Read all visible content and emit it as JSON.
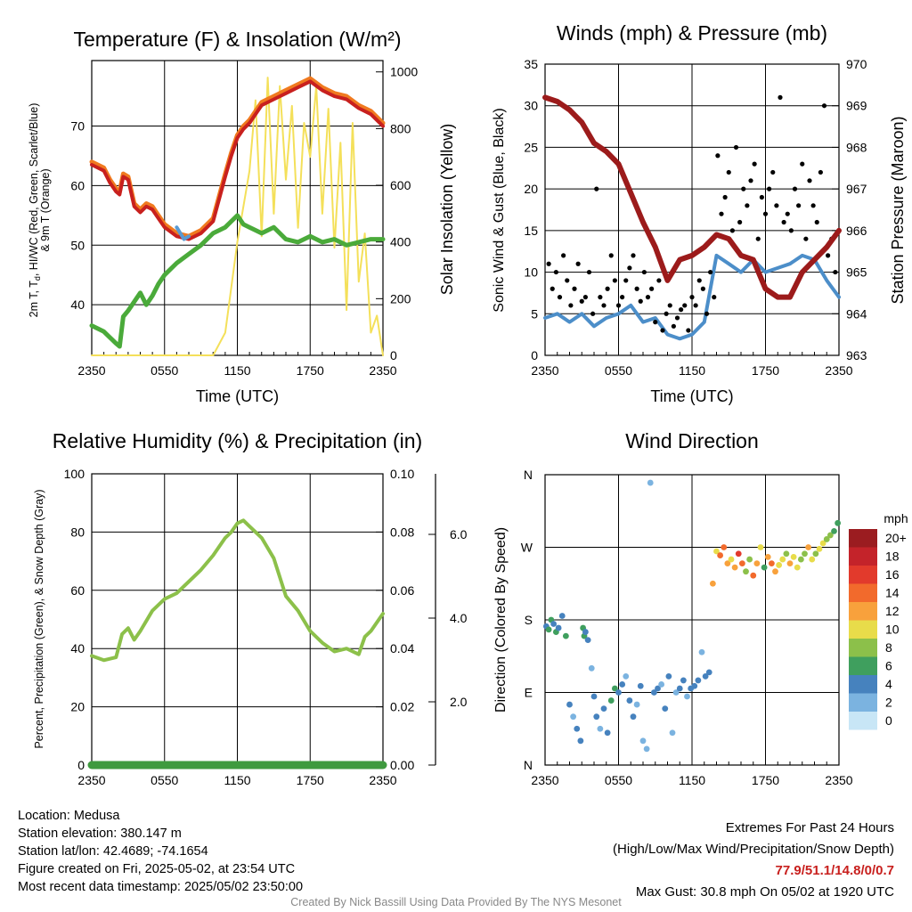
{
  "chart_data": [
    {
      "type": "line",
      "title": "Temperature (F) & Insolation (W/m²)",
      "xlabel": "Time (UTC)",
      "ylabel": "2m T, Td, HI/WC (Red, Green, Scarlet/Blue) & 9m T (Orange)",
      "ylabel_lines": [
        "2m T, T",
        "d",
        ", HI/WC (Red, Green, Scarlet/Blue)",
        "& 9m T (Orange)"
      ],
      "y2label": "Solar Insolation (Yellow)",
      "xticks": [
        "2350",
        "0550",
        "1150",
        "1750",
        "2350"
      ],
      "ylim": [
        31.5,
        81
      ],
      "yticks": [
        40,
        50,
        60,
        70
      ],
      "y2lim": [
        0,
        1040
      ],
      "y2ticks": [
        0,
        200,
        400,
        600,
        800,
        1000
      ],
      "x": [
        0,
        1,
        1.5,
        2,
        2.3,
        2.6,
        3,
        3.5,
        4,
        4.5,
        5,
        5.5,
        6,
        7,
        8,
        9,
        10,
        11,
        11.5,
        12,
        12.5,
        13,
        14,
        15,
        16,
        17,
        18,
        19,
        20,
        21,
        22,
        23,
        24
      ],
      "series": [
        {
          "name": "2m T",
          "color": "#c8201e",
          "values": [
            63.5,
            62.5,
            60.5,
            59,
            58.5,
            61.5,
            61,
            56.5,
            55.5,
            56.5,
            56,
            54.5,
            53,
            51.5,
            51,
            52,
            54,
            61.5,
            65,
            68,
            69.5,
            70.5,
            73.5,
            74.5,
            75.5,
            76.5,
            77.5,
            76,
            75,
            74.5,
            73,
            72,
            70
          ]
        },
        {
          "name": "9m T",
          "color": "#f07a1f",
          "values": [
            64,
            63,
            61,
            59.5,
            59,
            62,
            61.5,
            57,
            56,
            57,
            56.5,
            55,
            53.5,
            52,
            51.5,
            52.5,
            54.5,
            62,
            65.5,
            68.5,
            70,
            71,
            74,
            75,
            76,
            77,
            78,
            76.5,
            75.5,
            75,
            73.5,
            72.5,
            70.5
          ]
        },
        {
          "name": "Td",
          "color": "#4aaa3a",
          "values": [
            36.5,
            35.5,
            34.5,
            33.5,
            33,
            38,
            39,
            40.5,
            42,
            40,
            41.5,
            43.5,
            45,
            47,
            48.5,
            50,
            52,
            53,
            54,
            55,
            53.5,
            53,
            52,
            53,
            51,
            50.5,
            51.5,
            50.5,
            51,
            50,
            50.5,
            51,
            51
          ]
        }
      ],
      "wind_chill": {
        "name": "HI/WC",
        "color": "#5a9ad2",
        "x": [
          7,
          7.3,
          7.6,
          8
        ],
        "values": [
          53,
          52,
          51,
          51.5
        ]
      },
      "insolation": {
        "name": "Solar Insolation",
        "color": "#f4e05a",
        "x": [
          0,
          10,
          11,
          12,
          13,
          13.5,
          14,
          14.5,
          15,
          15.5,
          16,
          16.5,
          17,
          17.5,
          18,
          18.5,
          19,
          19.5,
          20,
          20.5,
          21,
          21.5,
          22,
          22.5,
          23,
          23.5,
          24
        ],
        "values": [
          0,
          0,
          80,
          400,
          650,
          900,
          420,
          980,
          500,
          950,
          620,
          880,
          450,
          820,
          700,
          950,
          500,
          870,
          380,
          750,
          160,
          820,
          260,
          430,
          80,
          140,
          0
        ]
      }
    },
    {
      "type": "line",
      "title": "Winds (mph) & Pressure (mb)",
      "xlabel": "Time (UTC)",
      "ylabel": "Sonic Wind & Gust (Blue, Black)",
      "y2label": "Station Pressure (Maroon)",
      "xticks": [
        "2350",
        "0550",
        "1150",
        "1750",
        "2350"
      ],
      "ylim": [
        0,
        35
      ],
      "yticks": [
        0,
        5,
        10,
        15,
        20,
        25,
        30,
        35
      ],
      "y2lim": [
        963,
        970
      ],
      "y2ticks": [
        963,
        964,
        965,
        966,
        967,
        968,
        969,
        970
      ],
      "series": [
        {
          "name": "Sonic Wind",
          "color": "#4c8ec9",
          "x": [
            0,
            1,
            2,
            3,
            4,
            5,
            6,
            7,
            8,
            9,
            10,
            11,
            12,
            13,
            14,
            15,
            16,
            17,
            18,
            19,
            20,
            21,
            22,
            23,
            24
          ],
          "values": [
            4.5,
            5,
            4,
            5,
            3.5,
            4.5,
            5,
            6,
            4,
            4.5,
            2.5,
            2,
            2.5,
            4,
            12,
            11,
            10,
            11.5,
            10,
            10.5,
            11,
            12,
            11.5,
            9,
            7
          ]
        },
        {
          "name": "Pressure",
          "color": "#9c1b1b",
          "x": [
            0,
            1,
            2,
            3,
            4,
            5,
            6,
            7,
            8,
            9,
            10,
            11,
            12,
            13,
            14,
            15,
            16,
            17,
            18,
            19,
            20,
            21,
            22,
            23,
            24
          ],
          "values": [
            969.2,
            969.1,
            968.9,
            968.6,
            968.1,
            967.9,
            967.6,
            966.9,
            966.2,
            965.6,
            964.8,
            965.3,
            965.4,
            965.6,
            965.9,
            965.8,
            965.4,
            965.3,
            964.6,
            964.4,
            964.4,
            965.0,
            965.3,
            965.6,
            966.0
          ]
        }
      ],
      "gusts": {
        "name": "Gust",
        "color": "#000000",
        "x": [
          0.3,
          0.6,
          0.9,
          1.2,
          1.5,
          1.8,
          2.1,
          2.4,
          2.7,
          3,
          3.3,
          3.6,
          3.9,
          4.2,
          4.5,
          4.8,
          5.1,
          5.4,
          5.7,
          6,
          6.3,
          6.6,
          6.9,
          7.2,
          7.5,
          7.8,
          8.1,
          8.4,
          8.7,
          9,
          9.3,
          9.6,
          9.9,
          10.2,
          10.5,
          10.8,
          11.1,
          11.4,
          11.7,
          12,
          12.3,
          12.6,
          12.9,
          13.2,
          13.5,
          13.8,
          14.1,
          14.4,
          14.7,
          15,
          15.3,
          15.6,
          15.9,
          16.2,
          16.5,
          16.8,
          17.1,
          17.4,
          17.7,
          18,
          18.3,
          18.6,
          18.9,
          19.2,
          19.5,
          19.8,
          20.1,
          20.4,
          20.7,
          21,
          21.3,
          21.6,
          21.9,
          22.2,
          22.5,
          22.8,
          23.1,
          23.4,
          23.7
        ],
        "values": [
          11,
          8,
          10,
          7,
          12,
          9,
          6,
          8,
          11,
          6.5,
          7,
          10,
          5,
          20,
          7,
          6,
          8,
          12,
          9,
          6,
          7,
          9,
          10.5,
          12,
          8,
          6.5,
          10,
          7,
          8,
          4,
          9,
          3,
          5,
          6,
          3.5,
          4.5,
          5.5,
          6,
          3,
          7,
          6,
          9,
          8,
          5,
          10,
          7,
          24,
          17,
          19,
          22,
          15,
          25,
          16,
          20,
          18,
          21,
          23,
          14,
          19,
          17,
          20,
          22,
          18,
          31,
          16,
          17,
          15,
          20,
          18,
          23,
          14,
          21,
          18,
          16,
          22,
          30,
          12,
          14,
          10
        ]
      }
    },
    {
      "type": "line",
      "title": "Relative Humidity (%) & Precipitation (in)",
      "ylabel": "Percent, Precipitation (Green), & Snow Depth (Gray)",
      "xticks": [
        "2350",
        "0550",
        "1150",
        "1750",
        "2350"
      ],
      "ylim": [
        0,
        100
      ],
      "yticks": [
        0,
        20,
        40,
        60,
        80,
        100
      ],
      "y2lim": [
        0,
        0.1
      ],
      "y2ticks": [
        "0.00",
        "0.02",
        "0.04",
        "0.06",
        "0.08",
        "0.10"
      ],
      "y3ticks": [
        "2.0",
        "4.0",
        "6.0"
      ],
      "x": [
        0,
        1,
        2,
        2.5,
        3,
        3.5,
        4,
        5,
        6,
        7,
        8,
        9,
        10,
        11,
        11.5,
        12,
        12.5,
        13,
        14,
        15,
        16,
        17,
        18,
        19,
        20,
        21,
        22,
        22.5,
        23,
        24
      ],
      "series": [
        {
          "name": "Relative Humidity",
          "color": "#8cc04a",
          "values": [
            37.5,
            36,
            37,
            45,
            47,
            43,
            46,
            53,
            57,
            59,
            63,
            67,
            72,
            78,
            80,
            83,
            84,
            82,
            78,
            71,
            58,
            53,
            46,
            42,
            39,
            40,
            38,
            44,
            46,
            52
          ]
        },
        {
          "name": "Precipitation",
          "color": "#3f9a3f",
          "values": [
            0,
            0,
            0,
            0,
            0,
            0,
            0,
            0,
            0,
            0,
            0,
            0,
            0,
            0,
            0,
            0,
            0,
            0,
            0,
            0,
            0,
            0,
            0,
            0,
            0,
            0,
            0,
            0,
            0,
            0
          ]
        }
      ]
    },
    {
      "type": "scatter",
      "title": "Wind Direction",
      "ylabel": "Direction (Colored By Speed)",
      "xticks": [
        "2350",
        "0550",
        "1150",
        "1750",
        "2350"
      ],
      "ylim": [
        0,
        360
      ],
      "ydir_ticks": [
        "N",
        "E",
        "S",
        "W",
        "N"
      ],
      "x": [
        0.1,
        0.3,
        0.5,
        0.7,
        0.9,
        1.1,
        1.4,
        1.7,
        2,
        2.3,
        2.6,
        2.9,
        3.1,
        3.2,
        3.3,
        3.5,
        3.8,
        4,
        4.2,
        4.5,
        4.8,
        5.1,
        5.4,
        5.7,
        6,
        6.3,
        6.6,
        6.9,
        7.2,
        7.5,
        7.8,
        8,
        8.3,
        8.6,
        8.9,
        9.2,
        9.5,
        9.8,
        10.1,
        10.4,
        10.7,
        11,
        11.3,
        11.6,
        11.9,
        12.2,
        12.5,
        12.8,
        13.1,
        13.4,
        13.7,
        14,
        14.3,
        14.6,
        14.9,
        15.2,
        15.5,
        15.8,
        16.1,
        16.4,
        16.7,
        17,
        17.3,
        17.6,
        17.9,
        18.2,
        18.5,
        18.8,
        19.1,
        19.4,
        19.7,
        20,
        20.3,
        20.6,
        20.9,
        21.2,
        21.5,
        21.8,
        22.1,
        22.4,
        22.7,
        23,
        23.3,
        23.6,
        23.9
      ],
      "values": [
        172,
        168,
        180,
        175,
        165,
        170,
        185,
        160,
        75,
        60,
        45,
        30,
        170,
        160,
        165,
        155,
        120,
        85,
        60,
        45,
        70,
        40,
        80,
        95,
        90,
        100,
        110,
        80,
        60,
        75,
        98,
        30,
        20,
        350,
        90,
        95,
        100,
        70,
        110,
        40,
        90,
        95,
        105,
        85,
        95,
        98,
        105,
        140,
        110,
        115,
        225,
        265,
        260,
        270,
        250,
        255,
        245,
        262,
        250,
        240,
        255,
        235,
        250,
        270,
        245,
        258,
        250,
        240,
        248,
        255,
        262,
        250,
        258,
        245,
        255,
        262,
        270,
        255,
        262,
        268,
        275,
        280,
        285,
        290,
        300
      ],
      "speeds": [
        4,
        5,
        6,
        4,
        5,
        3,
        4,
        6,
        3,
        2,
        3,
        4,
        5,
        6,
        3,
        4,
        2,
        3,
        4,
        2,
        4,
        3,
        6,
        5,
        4,
        3,
        2,
        4,
        3,
        2,
        4,
        1,
        2,
        1,
        3,
        4,
        2,
        3,
        3,
        1,
        2,
        3,
        4,
        2,
        3,
        4,
        3,
        2,
        4,
        3,
        12,
        10,
        13,
        14,
        11,
        9,
        12,
        15,
        14,
        8,
        7,
        13,
        12,
        10,
        6,
        11,
        14,
        12,
        10,
        9,
        8,
        11,
        10,
        9,
        7,
        8,
        12,
        9,
        8,
        10,
        9,
        8,
        7,
        6,
        5
      ],
      "colorbar": {
        "title": "mph",
        "labels": [
          "20+",
          "18",
          "16",
          "14",
          "12",
          "10",
          "8",
          "6",
          "4",
          "2",
          "0"
        ],
        "colors": [
          "#9b1c20",
          "#c4232a",
          "#e23a2c",
          "#f26a2c",
          "#f8a13c",
          "#e8dc4a",
          "#8cc04a",
          "#3f9f5e",
          "#4682be",
          "#7bb3e0",
          "#c8e6f6"
        ]
      }
    }
  ],
  "info": {
    "location": "Location: Medusa",
    "elevation": "Station elevation: 380.147 m",
    "latlon": "Station lat/lon: 42.4689; -74.1654",
    "created": "Figure created on Fri, 2025-05-02, at 23:54 UTC",
    "recent": "Most recent data timestamp: 2025/05/02 23:50:00"
  },
  "extremes": {
    "title": "Extremes For Past 24 Hours",
    "subtitle": "(High/Low/Max Wind/Precipitation/Snow Depth)",
    "values": "77.9/51.1/14.8/0/0.7",
    "values_color": "#c8201e",
    "gust": "Max Gust: 30.8 mph On 05/02 at 1920 UTC"
  },
  "credit": "Created By Nick Bassill Using Data Provided By The NYS Mesonet"
}
